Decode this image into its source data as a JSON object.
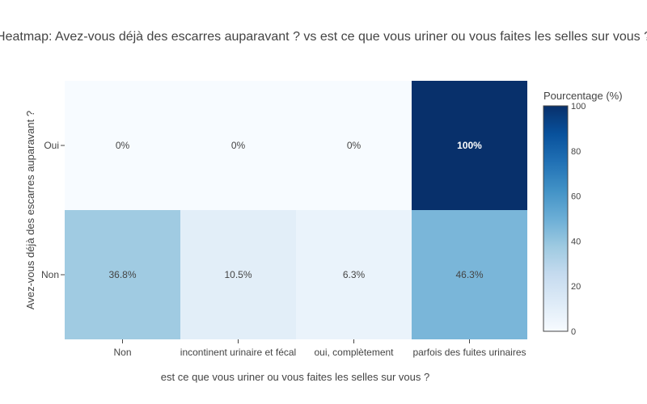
{
  "chart_data": {
    "type": "heatmap",
    "title": "Heatmap: Avez-vous déjà des escarres auparavant ? vs est ce que vous uriner ou vous faites les selles sur vous ?",
    "xlabel": "est ce que vous uriner ou vous faites les selles sur vous ?",
    "ylabel": "Avez-vous déjà des escarres auparavant ?",
    "x_categories": [
      "Non",
      "incontinent urinaire et fécal",
      "oui, complètement",
      "parfois des fuites urinaires"
    ],
    "y_categories": [
      "Oui",
      "Non"
    ],
    "values": [
      [
        0,
        0,
        0,
        100
      ],
      [
        36.8,
        10.5,
        6.3,
        46.3
      ]
    ],
    "cell_labels": [
      [
        "0%",
        "0%",
        "0%",
        "100%"
      ],
      [
        "36.8%",
        "10.5%",
        "6.3%",
        "46.3%"
      ]
    ],
    "colorbar": {
      "title": "Pourcentage (%)",
      "range": [
        0,
        100
      ],
      "ticks": [
        "0",
        "20",
        "40",
        "60",
        "80",
        "100"
      ]
    },
    "colorscale": "Blues"
  }
}
